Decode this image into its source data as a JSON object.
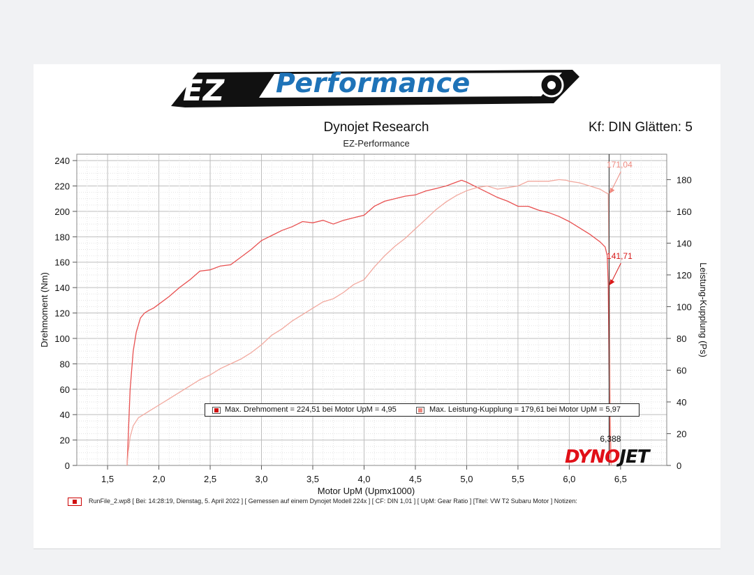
{
  "logo": {
    "lettering": "Performance",
    "prefix": "EZ"
  },
  "header": {
    "title": "Dynojet Research",
    "subtitle": "EZ-Performance",
    "right_text": "Kf: DIN Glätten: 5"
  },
  "legend": {
    "torque_text": "Max. Drehmoment = 224,51 bei Motor UpM = 4,95",
    "power_text": "Max. Leistung-Kupplung = 179,61 bei Motor UpM = 5,97"
  },
  "footer": {
    "runfile_text": "RunFile_2.wp8 [ Bei: 14:28:19, Dienstag, 5. April 2022 ] [ Gemessen auf einem Dynojet Modell 224x ] [ CF: DIN 1,01 ] [ UpM: Gear Ratio ] [Titel: VW T2 Subaru Motor ]  Notizen:"
  },
  "dyno_logo": {
    "part1": "DYNO",
    "part2": "JET"
  },
  "colors": {
    "torque": "#e85050",
    "power": "#f2a99f",
    "grid": "#c8c8c8",
    "cursor": "#222222"
  },
  "chart_data": {
    "type": "line",
    "xlabel": "Motor UpM (Upmx1000)",
    "ylabel_left": "Drehmoment (Nm)",
    "ylabel_right": "Leistung-Kupplung (Ps)",
    "xlim": [
      1.2,
      6.95
    ],
    "ylim_left": [
      0,
      245
    ],
    "ylim_right": [
      0,
      196
    ],
    "x_ticks": [
      "1,5",
      "2,0",
      "2,5",
      "3,0",
      "3,5",
      "4,0",
      "4,5",
      "5,0",
      "5,5",
      "6,0",
      "6,5"
    ],
    "x_tick_values": [
      1.5,
      2.0,
      2.5,
      3.0,
      3.5,
      4.0,
      4.5,
      5.0,
      5.5,
      6.0,
      6.5
    ],
    "y_left_ticks": [
      0,
      20,
      40,
      60,
      80,
      100,
      120,
      140,
      160,
      180,
      200,
      220,
      240
    ],
    "y_right_ticks": [
      0,
      20,
      40,
      60,
      80,
      100,
      120,
      140,
      160,
      180
    ],
    "grid": true,
    "cursor": {
      "x": 6.388,
      "label": "6,388"
    },
    "annotations": [
      {
        "series": "torque",
        "label": "141,71",
        "value": 141.71
      },
      {
        "series": "power",
        "label": "171,04",
        "value": 171.04
      }
    ],
    "series": [
      {
        "name": "Drehmoment",
        "axis": "left",
        "x": [
          1.69,
          1.7,
          1.72,
          1.75,
          1.78,
          1.82,
          1.86,
          1.9,
          1.95,
          2.0,
          2.1,
          2.2,
          2.3,
          2.4,
          2.5,
          2.6,
          2.7,
          2.8,
          2.9,
          3.0,
          3.1,
          3.2,
          3.3,
          3.4,
          3.5,
          3.6,
          3.7,
          3.8,
          3.9,
          4.0,
          4.1,
          4.2,
          4.3,
          4.4,
          4.5,
          4.6,
          4.7,
          4.8,
          4.9,
          4.95,
          5.0,
          5.1,
          5.2,
          5.3,
          5.4,
          5.5,
          5.6,
          5.7,
          5.8,
          5.9,
          6.0,
          6.1,
          6.2,
          6.3,
          6.35,
          6.37,
          6.38,
          6.39,
          6.4,
          6.41
        ],
        "values": [
          0,
          20,
          60,
          90,
          105,
          116,
          120,
          122,
          124,
          127,
          133,
          140,
          146,
          153,
          154,
          157,
          158,
          164,
          170,
          177,
          181,
          185,
          188,
          192,
          191,
          193,
          190,
          193,
          195,
          197,
          204,
          208,
          210,
          212,
          213,
          216,
          218,
          220,
          223,
          224.5,
          223,
          219,
          215,
          211,
          208,
          204,
          204,
          201,
          199,
          196,
          192,
          187,
          182,
          176,
          172,
          165,
          141.7,
          60,
          10,
          0
        ]
      },
      {
        "name": "Leistung-Kupplung",
        "axis": "right",
        "x": [
          1.69,
          1.7,
          1.72,
          1.75,
          1.8,
          1.9,
          2.0,
          2.1,
          2.2,
          2.3,
          2.4,
          2.5,
          2.6,
          2.7,
          2.8,
          2.9,
          3.0,
          3.1,
          3.2,
          3.3,
          3.4,
          3.5,
          3.6,
          3.7,
          3.8,
          3.9,
          4.0,
          4.1,
          4.2,
          4.3,
          4.4,
          4.5,
          4.6,
          4.7,
          4.8,
          4.9,
          5.0,
          5.1,
          5.2,
          5.3,
          5.4,
          5.5,
          5.6,
          5.7,
          5.8,
          5.9,
          5.97,
          6.0,
          6.1,
          6.2,
          6.3,
          6.35,
          6.38,
          6.39,
          6.4,
          6.41
        ],
        "values": [
          0,
          8,
          18,
          25,
          30,
          34,
          38,
          42,
          46,
          50,
          54,
          57,
          61,
          64,
          67,
          71,
          76,
          82,
          86,
          91,
          95,
          99,
          103,
          105,
          109,
          114,
          117,
          125,
          132,
          138,
          143,
          149,
          155,
          161,
          166,
          170,
          173,
          175,
          176,
          174,
          175,
          176,
          179,
          179,
          179,
          180,
          179.6,
          179,
          178,
          176,
          174,
          172,
          171.0,
          120,
          30,
          0
        ]
      }
    ]
  }
}
